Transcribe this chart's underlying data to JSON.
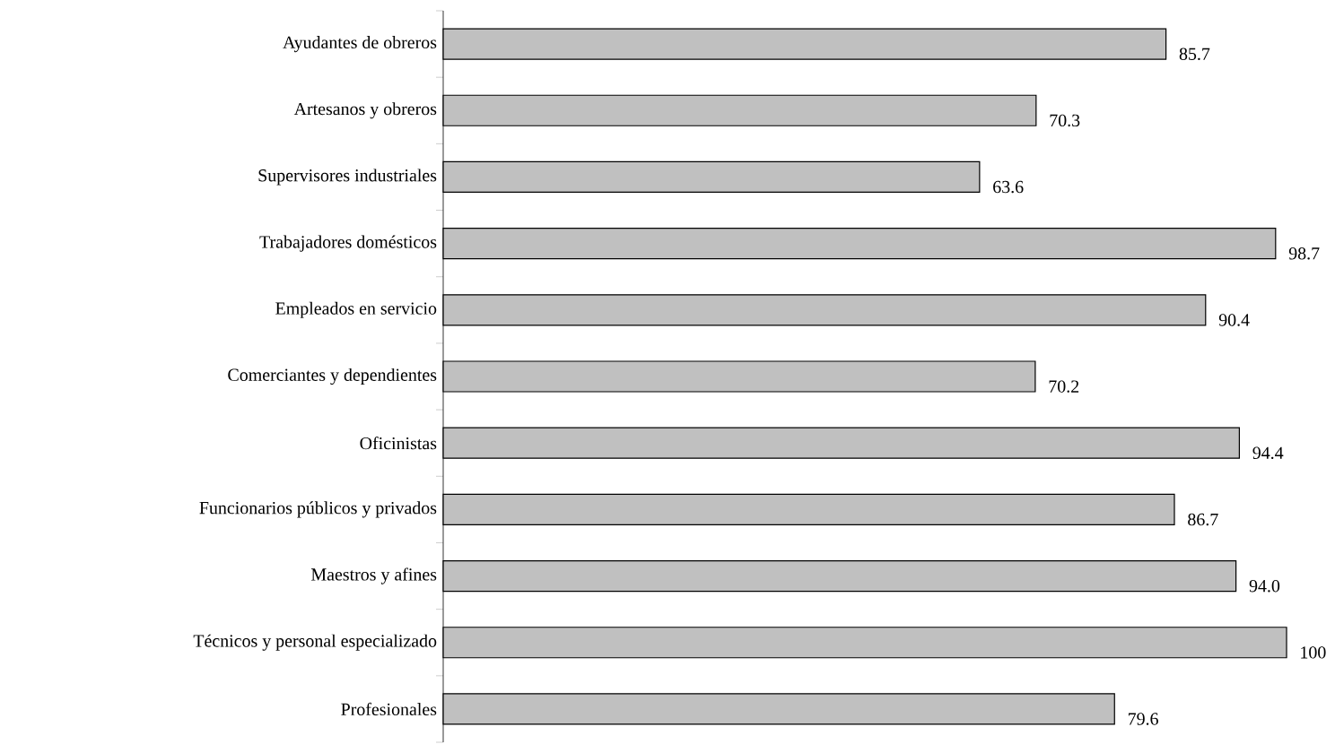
{
  "chart_data": {
    "type": "bar",
    "orientation": "horizontal",
    "categories": [
      "Ayudantes de obreros",
      "Artesanos y obreros",
      "Supervisores industriales",
      "Trabajadores domésticos",
      "Empleados en servicio",
      "Comerciantes y dependientes",
      "Oficinistas",
      "Funcionarios públicos y privados",
      "Maestros y afines",
      "Técnicos y personal especializado",
      "Profesionales"
    ],
    "values": [
      85.7,
      70.3,
      63.6,
      98.7,
      90.4,
      70.2,
      94.4,
      86.7,
      94.0,
      100,
      79.6
    ],
    "value_labels": [
      "85.7",
      "70.3",
      "63.6",
      "98.7",
      "90.4",
      "70.2",
      "94.4",
      "86.7",
      "94.0",
      "100",
      "79.6"
    ],
    "color": "#c0c0c0"
  }
}
